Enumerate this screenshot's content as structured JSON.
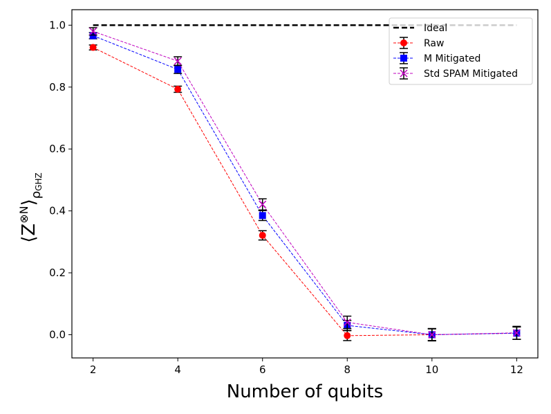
{
  "chart_data": {
    "type": "line",
    "title": "",
    "xlabel": "Number of qubits",
    "ylabel": "⟨Z⊗N⟩ρGHZ",
    "ylabel_parts": {
      "main": "⟨Z",
      "sup": "⊗N",
      "close": "⟩",
      "sub": "ρ",
      "subsub": "GHZ"
    },
    "x": [
      2,
      4,
      6,
      8,
      10,
      12
    ],
    "xlim": [
      1.5,
      12.5
    ],
    "ylim": [
      -0.075,
      1.05
    ],
    "x_ticks": [
      "2",
      "4",
      "6",
      "8",
      "10",
      "12"
    ],
    "y_ticks": [
      "0.0",
      "0.2",
      "0.4",
      "0.6",
      "0.8",
      "1.0"
    ],
    "legend_position": "top-right",
    "series": [
      {
        "name": "Ideal",
        "color": "#000000",
        "style": "dashed",
        "marker": "none",
        "values": [
          1,
          1,
          1,
          1,
          1,
          1
        ],
        "errors": []
      },
      {
        "name": "Raw",
        "color": "#ff0000",
        "style": "dashed",
        "marker": "circle",
        "values": [
          0.928,
          0.793,
          0.321,
          -0.003,
          0.0,
          0.005
        ],
        "errors": [
          0.008,
          0.01,
          0.015,
          0.016,
          0.019,
          0.02
        ]
      },
      {
        "name": "M Mitigated",
        "color": "#0000ff",
        "style": "dashed",
        "marker": "square",
        "values": [
          0.966,
          0.857,
          0.385,
          0.03,
          0.0,
          0.005
        ],
        "errors": [
          0.01,
          0.013,
          0.016,
          0.016,
          0.019,
          0.02
        ]
      },
      {
        "name": "Std SPAM Mitigated",
        "color": "#bf00bf",
        "style": "dashed",
        "marker": "x",
        "values": [
          0.98,
          0.884,
          0.421,
          0.04,
          0.0,
          0.006
        ],
        "errors": [
          0.012,
          0.014,
          0.018,
          0.02,
          0.02,
          0.021
        ]
      }
    ]
  }
}
